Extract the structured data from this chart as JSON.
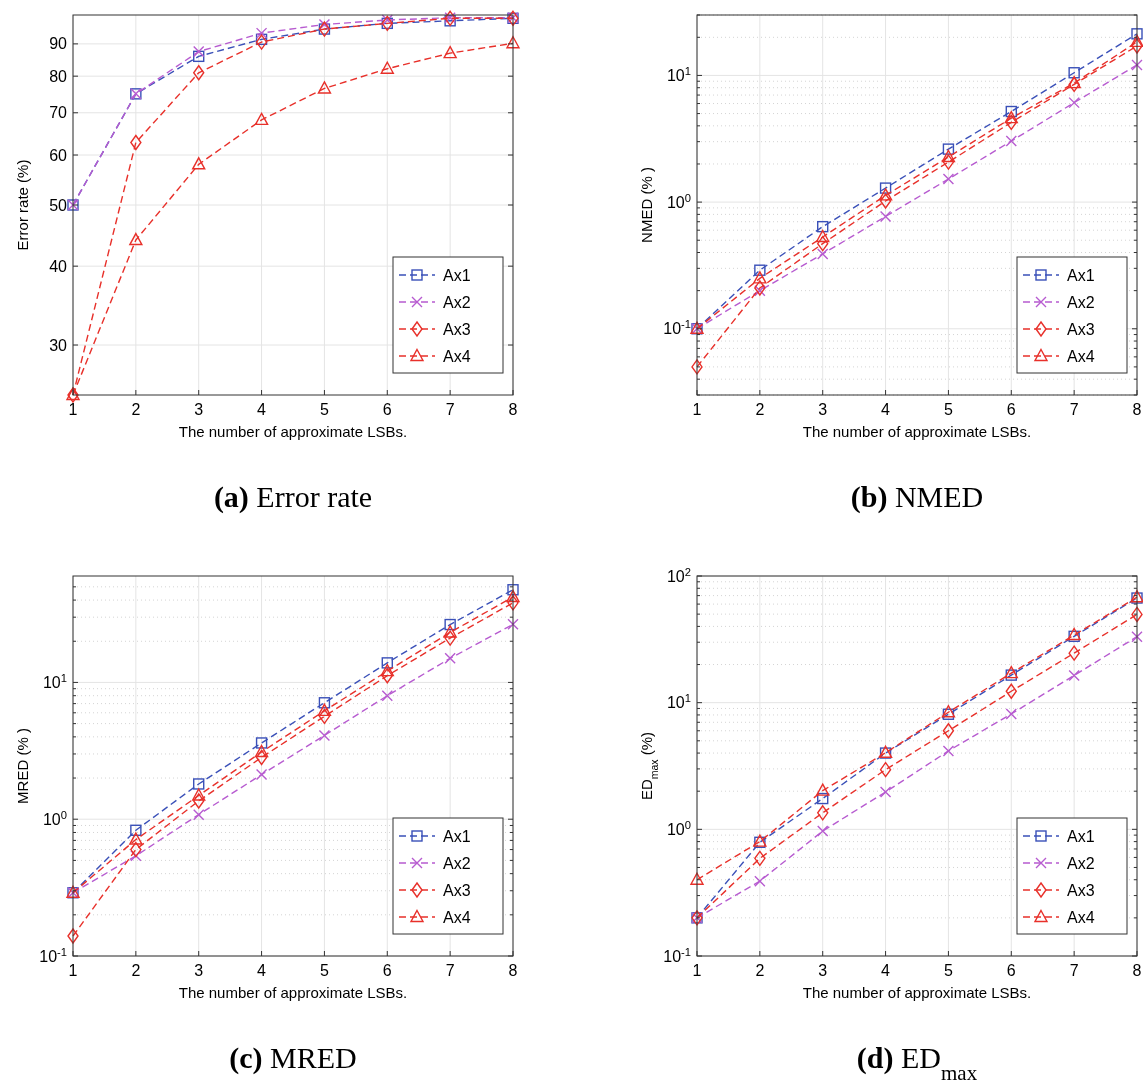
{
  "chart_data": [
    {
      "type": "line",
      "title": "(a) Error rate",
      "xlabel": "The number of approximate LSBs.",
      "ylabel": "Error rate (%)",
      "x": [
        1,
        2,
        3,
        4,
        5,
        6,
        7,
        8
      ],
      "xlim": [
        1,
        8
      ],
      "xticks": [
        1,
        2,
        3,
        4,
        5,
        6,
        7,
        8
      ],
      "ylim": [
        25,
        100
      ],
      "yticks": [
        30,
        40,
        50,
        60,
        70,
        80,
        90
      ],
      "log": "y",
      "grid": true,
      "legend": "bottom right",
      "series": [
        {
          "name": "Ax1",
          "color": "#3a50b8",
          "marker": "square",
          "line_style": "dashed",
          "values": [
            50,
            75,
            86,
            91.5,
            95,
            97,
            97.9,
            98.8
          ]
        },
        {
          "name": "Ax2",
          "color": "#b75bd0",
          "marker": "cross",
          "line_style": "dashed",
          "values": [
            50,
            75,
            87.5,
            93.6,
            96.6,
            98.2,
            99,
            99
          ]
        },
        {
          "name": "Ax3",
          "color": "#e8302a",
          "marker": "diamond",
          "line_style": "dashed",
          "values": [
            25,
            62.8,
            81,
            90.6,
            95,
            97,
            98.8,
            98.8
          ]
        },
        {
          "name": "Ax4",
          "color": "#e8302a",
          "marker": "triangle",
          "line_style": "dashed",
          "values": [
            25,
            44,
            58,
            68.2,
            76.5,
            82.2,
            87,
            90.2
          ]
        }
      ]
    },
    {
      "type": "line",
      "title": "(b) NMED",
      "xlabel": "The number of approximate LSBs.",
      "ylabel": "NMED (%  )",
      "x": [
        1,
        2,
        3,
        4,
        5,
        6,
        7,
        8
      ],
      "xlim": [
        1,
        8
      ],
      "xticks": [
        1,
        2,
        3,
        4,
        5,
        6,
        7,
        8
      ],
      "ylim": [
        0.03,
        30
      ],
      "yticks": [
        {
          "value": 0.03,
          "label": null
        },
        {
          "value": 0.04,
          "label": null
        },
        {
          "value": 0.05,
          "label": null
        },
        {
          "value": 0.06,
          "label": null
        },
        {
          "value": 0.07,
          "label": null
        },
        {
          "value": 0.08,
          "label": null
        },
        {
          "value": 0.09,
          "label": null
        },
        {
          "value": 0.1,
          "label": "10$^{-1}$"
        },
        {
          "value": 0.2,
          "label": null
        },
        {
          "value": 0.3,
          "label": null
        },
        {
          "value": 0.4,
          "label": null
        },
        {
          "value": 0.5,
          "label": null
        },
        {
          "value": 0.6,
          "label": null
        },
        {
          "value": 0.7,
          "label": null
        },
        {
          "value": 0.8,
          "label": null
        },
        {
          "value": 0.9,
          "label": null
        },
        {
          "value": 1,
          "label": "10$^{0}$"
        },
        {
          "value": 2,
          "label": null
        },
        {
          "value": 3,
          "label": null
        },
        {
          "value": 4,
          "label": null
        },
        {
          "value": 5,
          "label": null
        },
        {
          "value": 6,
          "label": null
        },
        {
          "value": 7,
          "label": null
        },
        {
          "value": 8,
          "label": null
        },
        {
          "value": 9,
          "label": null
        },
        {
          "value": 10,
          "label": "10$^{1}$"
        },
        {
          "value": 20,
          "label": null
        },
        {
          "value": 30,
          "label": null
        }
      ],
      "log": "y",
      "grid": true,
      "legend": "bottom right",
      "series": [
        {
          "name": "Ax1",
          "color": "#3a50b8",
          "marker": "square",
          "line_style": "dashed",
          "values": [
            0.1,
            0.29,
            0.64,
            1.29,
            2.62,
            5.19,
            10.5,
            21.3
          ]
        },
        {
          "name": "Ax2",
          "color": "#b75bd0",
          "marker": "cross",
          "line_style": "dashed",
          "values": [
            0.1,
            0.2,
            0.39,
            0.77,
            1.52,
            3.03,
            6.1,
            12.1
          ]
        },
        {
          "name": "Ax3",
          "color": "#e8302a",
          "marker": "diamond",
          "line_style": "dashed",
          "values": [
            0.05,
            0.21,
            0.47,
            1.02,
            2.07,
            4.26,
            8.5,
            17.1
          ]
        },
        {
          "name": "Ax4",
          "color": "#e8302a",
          "marker": "triangle",
          "line_style": "dashed",
          "values": [
            0.1,
            0.25,
            0.53,
            1.13,
            2.27,
            4.6,
            8.7,
            18.4
          ]
        }
      ]
    },
    {
      "type": "line",
      "title": "(c) MRED",
      "xlabel": "The number of approximate LSBs.",
      "ylabel": "MRED (%  )",
      "x": [
        1,
        2,
        3,
        4,
        5,
        6,
        7,
        8
      ],
      "xlim": [
        1,
        8
      ],
      "xticks": [
        1,
        2,
        3,
        4,
        5,
        6,
        7,
        8
      ],
      "ylim": [
        0.1,
        60
      ],
      "yticks": [
        {
          "value": 0.1,
          "label": "10$^{-1}$"
        },
        {
          "value": 0.2,
          "label": null
        },
        {
          "value": 0.3,
          "label": null
        },
        {
          "value": 0.4,
          "label": null
        },
        {
          "value": 0.5,
          "label": null
        },
        {
          "value": 0.6,
          "label": null
        },
        {
          "value": 0.7,
          "label": null
        },
        {
          "value": 0.8,
          "label": null
        },
        {
          "value": 0.9,
          "label": null
        },
        {
          "value": 1,
          "label": "10$^{0}$"
        },
        {
          "value": 2,
          "label": null
        },
        {
          "value": 3,
          "label": null
        },
        {
          "value": 4,
          "label": null
        },
        {
          "value": 5,
          "label": null
        },
        {
          "value": 6,
          "label": null
        },
        {
          "value": 7,
          "label": null
        },
        {
          "value": 8,
          "label": null
        },
        {
          "value": 9,
          "label": null
        },
        {
          "value": 10,
          "label": "10$^{1}$"
        },
        {
          "value": 20,
          "label": null
        },
        {
          "value": 30,
          "label": null
        },
        {
          "value": 40,
          "label": null
        },
        {
          "value": 50,
          "label": null
        }
      ],
      "log": "y",
      "grid": true,
      "legend": "bottom right",
      "series": [
        {
          "name": "Ax1",
          "color": "#3a50b8",
          "marker": "square",
          "line_style": "dashed",
          "values": [
            0.29,
            0.83,
            1.81,
            3.61,
            7.1,
            13.9,
            26.5,
            47.6
          ]
        },
        {
          "name": "Ax2",
          "color": "#b75bd0",
          "marker": "cross",
          "line_style": "dashed",
          "values": [
            0.29,
            0.54,
            1.08,
            2.12,
            4.1,
            8,
            15,
            26.6
          ]
        },
        {
          "name": "Ax3",
          "color": "#e8302a",
          "marker": "diamond",
          "line_style": "dashed",
          "values": [
            0.14,
            0.6,
            1.36,
            2.83,
            5.65,
            11.2,
            21.1,
            38.2
          ]
        },
        {
          "name": "Ax4",
          "color": "#e8302a",
          "marker": "triangle",
          "line_style": "dashed",
          "values": [
            0.29,
            0.71,
            1.49,
            3.1,
            6.2,
            12.1,
            23.2,
            42.1
          ]
        }
      ]
    },
    {
      "type": "line",
      "title": "(d) ED$_{max}$",
      "xlabel": "The number of approximate LSBs.",
      "ylabel": "ED$_{max}$ (%)",
      "x": [
        1,
        2,
        3,
        4,
        5,
        6,
        7,
        8
      ],
      "xlim": [
        1,
        8
      ],
      "xticks": [
        1,
        2,
        3,
        4,
        5,
        6,
        7,
        8
      ],
      "ylim": [
        0.1,
        100
      ],
      "yticks": [
        {
          "value": 0.1,
          "label": "10$^{-1}$"
        },
        {
          "value": 0.2,
          "label": null
        },
        {
          "value": 0.3,
          "label": null
        },
        {
          "value": 0.4,
          "label": null
        },
        {
          "value": 0.5,
          "label": null
        },
        {
          "value": 0.6,
          "label": null
        },
        {
          "value": 0.7,
          "label": null
        },
        {
          "value": 0.8,
          "label": null
        },
        {
          "value": 0.9,
          "label": null
        },
        {
          "value": 1,
          "label": "10$^{0}$"
        },
        {
          "value": 2,
          "label": null
        },
        {
          "value": 3,
          "label": null
        },
        {
          "value": 4,
          "label": null
        },
        {
          "value": 5,
          "label": null
        },
        {
          "value": 6,
          "label": null
        },
        {
          "value": 7,
          "label": null
        },
        {
          "value": 8,
          "label": null
        },
        {
          "value": 9,
          "label": null
        },
        {
          "value": 10,
          "label": "10$^{1}$"
        },
        {
          "value": 20,
          "label": null
        },
        {
          "value": 30,
          "label": null
        },
        {
          "value": 40,
          "label": null
        },
        {
          "value": 50,
          "label": null
        },
        {
          "value": 60,
          "label": null
        },
        {
          "value": 70,
          "label": null
        },
        {
          "value": 80,
          "label": null
        },
        {
          "value": 90,
          "label": null
        },
        {
          "value": 100,
          "label": "10$^{2}$"
        }
      ],
      "log": "y",
      "grid": true,
      "legend": "bottom right",
      "series": [
        {
          "name": "Ax1",
          "color": "#3a50b8",
          "marker": "square",
          "line_style": "dashed",
          "values": [
            0.2,
            0.79,
            1.75,
            4,
            8.1,
            16.5,
            33.4,
            67
          ]
        },
        {
          "name": "Ax2",
          "color": "#b75bd0",
          "marker": "cross",
          "line_style": "dashed",
          "values": [
            0.2,
            0.39,
            0.97,
            1.97,
            4.16,
            8.15,
            16.4,
            33.2
          ]
        },
        {
          "name": "Ax3",
          "color": "#e8302a",
          "marker": "diamond",
          "line_style": "dashed",
          "values": [
            0.2,
            0.59,
            1.35,
            2.96,
            6,
            12.3,
            24.6,
            49.7
          ]
        },
        {
          "name": "Ax4",
          "color": "#e8302a",
          "marker": "triangle",
          "line_style": "dashed",
          "values": [
            0.4,
            0.8,
            2.02,
            4.02,
            8.4,
            17.1,
            34.2,
            68
          ]
        }
      ]
    }
  ]
}
